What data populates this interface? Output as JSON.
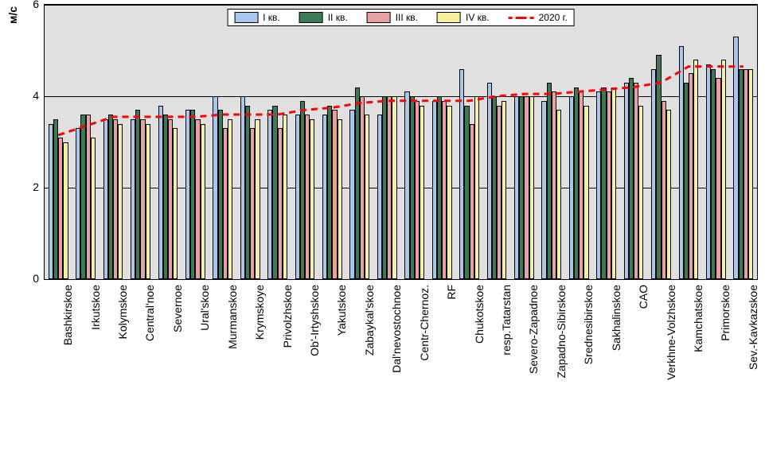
{
  "chart": {
    "type": "bar-with-line",
    "y_label": "м/с",
    "ylim": [
      0,
      6
    ],
    "yticks": [
      0,
      2,
      4,
      6
    ],
    "plot_bg": "#e0e0e0",
    "grid_color": "#000000",
    "series": [
      {
        "key": "q1",
        "label": "I кв.",
        "color": "#a9c6ec"
      },
      {
        "key": "q2",
        "label": "II кв.",
        "color": "#3b7a57"
      },
      {
        "key": "q3",
        "label": "III кв.",
        "color": "#e8a0a0"
      },
      {
        "key": "q4",
        "label": "IV кв.",
        "color": "#f5f0a0"
      }
    ],
    "line_series": {
      "label": "2020 г.",
      "color": "#ff0000",
      "width": 3,
      "dash": "8 6"
    },
    "categories": [
      {
        "name": "Bashkirskoe",
        "q1": 3.4,
        "q2": 3.5,
        "q3": 3.1,
        "q4": 3.0,
        "y2020": 3.15
      },
      {
        "name": "Irkutskoe",
        "q1": 3.3,
        "q2": 3.6,
        "q3": 3.6,
        "q4": 3.1,
        "y2020": 3.35
      },
      {
        "name": "Kolymskoe",
        "q1": 3.5,
        "q2": 3.6,
        "q3": 3.5,
        "q4": 3.4,
        "y2020": 3.55
      },
      {
        "name": "Central'noe",
        "q1": 3.5,
        "q2": 3.7,
        "q3": 3.5,
        "q4": 3.4,
        "y2020": 3.55
      },
      {
        "name": "Severnoe",
        "q1": 3.8,
        "q2": 3.6,
        "q3": 3.5,
        "q4": 3.3,
        "y2020": 3.55
      },
      {
        "name": "Ural'skoe",
        "q1": 3.7,
        "q2": 3.7,
        "q3": 3.5,
        "q4": 3.4,
        "y2020": 3.55
      },
      {
        "name": "Murmanskoe",
        "q1": 4.0,
        "q2": 3.7,
        "q3": 3.3,
        "q4": 3.5,
        "y2020": 3.6
      },
      {
        "name": "Krymskoye",
        "q1": 4.0,
        "q2": 3.8,
        "q3": 3.3,
        "q4": 3.5,
        "y2020": 3.6
      },
      {
        "name": "Privolzhskoe",
        "q1": 3.7,
        "q2": 3.8,
        "q3": 3.3,
        "q4": 3.6,
        "y2020": 3.6
      },
      {
        "name": "Ob'-Irtyshskoe",
        "q1": 3.6,
        "q2": 3.9,
        "q3": 3.6,
        "q4": 3.5,
        "y2020": 3.7
      },
      {
        "name": "Yakutskoe",
        "q1": 3.6,
        "q2": 3.8,
        "q3": 3.7,
        "q4": 3.5,
        "y2020": 3.75
      },
      {
        "name": "Zabaykal'skoe",
        "q1": 3.7,
        "q2": 4.2,
        "q3": 4.0,
        "q4": 3.6,
        "y2020": 3.85
      },
      {
        "name": "Dal'nevostochnoe",
        "q1": 3.6,
        "q2": 4.0,
        "q3": 4.0,
        "q4": 4.0,
        "y2020": 3.9
      },
      {
        "name": "Centr-Chernoz.",
        "q1": 4.1,
        "q2": 4.0,
        "q3": 3.9,
        "q4": 3.8,
        "y2020": 3.9
      },
      {
        "name": "RF",
        "q1": 3.9,
        "q2": 4.0,
        "q3": 3.9,
        "q4": 3.8,
        "y2020": 3.9
      },
      {
        "name": "Chukotskoe",
        "q1": 4.6,
        "q2": 3.8,
        "q3": 3.4,
        "q4": 4.0,
        "y2020": 3.9
      },
      {
        "name": "resp.Tatarstan",
        "q1": 4.3,
        "q2": 4.0,
        "q3": 3.8,
        "q4": 3.9,
        "y2020": 4.0
      },
      {
        "name": "Severo-Zapadnoe",
        "q1": 4.0,
        "q2": 4.0,
        "q3": 4.0,
        "q4": 4.0,
        "y2020": 4.05
      },
      {
        "name": "Zapadno-Sibirskoe",
        "q1": 3.9,
        "q2": 4.3,
        "q3": 4.1,
        "q4": 3.7,
        "y2020": 4.05
      },
      {
        "name": "Srednesibirskoe",
        "q1": 4.0,
        "q2": 4.2,
        "q3": 4.1,
        "q4": 3.8,
        "y2020": 4.1
      },
      {
        "name": "Sakhalinskoe",
        "q1": 4.1,
        "q2": 4.2,
        "q3": 4.1,
        "q4": 4.2,
        "y2020": 4.15
      },
      {
        "name": "CAO",
        "q1": 4.3,
        "q2": 4.4,
        "q3": 4.3,
        "q4": 3.8,
        "y2020": 4.2
      },
      {
        "name": "Verkhne-Volzhskoe",
        "q1": 4.6,
        "q2": 4.9,
        "q3": 3.9,
        "q4": 3.7,
        "y2020": 4.3
      },
      {
        "name": "Kamchatskoe",
        "q1": 5.1,
        "q2": 4.3,
        "q3": 4.5,
        "q4": 4.8,
        "y2020": 4.65
      },
      {
        "name": "Primorskoe",
        "q1": 4.7,
        "q2": 4.6,
        "q3": 4.4,
        "q4": 4.8,
        "y2020": 4.65
      },
      {
        "name": "Sev.-Kavkazskoe",
        "q1": 5.3,
        "q2": 4.6,
        "q3": 4.6,
        "q4": 4.6,
        "y2020": 4.65
      }
    ],
    "bar_width_ratio": 0.18,
    "group_gap_ratio": 0.15
  }
}
